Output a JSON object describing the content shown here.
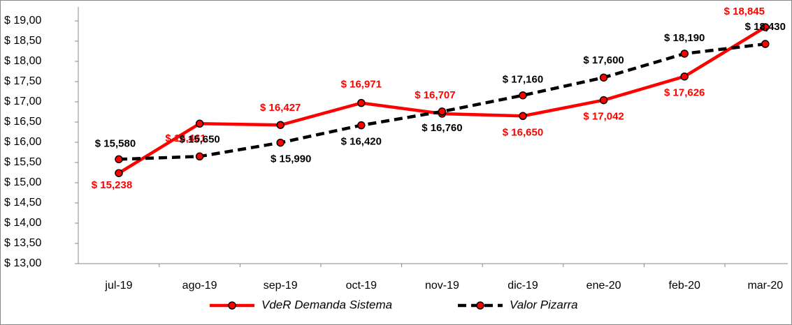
{
  "chart_data": {
    "type": "line",
    "categories": [
      "jul-19",
      "ago-19",
      "sep-19",
      "oct-19",
      "nov-19",
      "dic-19",
      "ene-20",
      "feb-20",
      "mar-20"
    ],
    "series": [
      {
        "name": "VdeR Demanda Sistema",
        "color": "#ff0000",
        "values": [
          15.238,
          16.461,
          16.427,
          16.971,
          16.707,
          16.65,
          17.042,
          17.626,
          18.845
        ],
        "value_labels": [
          "$ 15,238",
          "$ 16,461",
          "$ 16,427",
          "$ 16,971",
          "$ 16,707",
          "$ 16,650",
          "$ 17,042",
          "$ 17,626",
          "$ 18,845"
        ]
      },
      {
        "name": "Valor Pizarra",
        "color": "#000000",
        "values": [
          15.58,
          15.65,
          15.99,
          16.42,
          16.76,
          17.16,
          17.6,
          18.19,
          18.43
        ],
        "value_labels": [
          "$ 15,580",
          "$ 15,650",
          "$ 15,990",
          "$ 16,420",
          "$ 16,760",
          "$ 17,160",
          "$ 17,600",
          "$ 18,190",
          "$ 18,430"
        ]
      }
    ],
    "ylim": [
      13,
      19
    ],
    "yticks": [
      {
        "value": 13,
        "label": "$ 13,00"
      },
      {
        "value": 13.5,
        "label": "$ 13,50"
      },
      {
        "value": 14,
        "label": "$ 14,00"
      },
      {
        "value": 14.5,
        "label": "$ 14,50"
      },
      {
        "value": 15,
        "label": "$ 15,00"
      },
      {
        "value": 15.5,
        "label": "$ 15,50"
      },
      {
        "value": 16,
        "label": "$ 16,00"
      },
      {
        "value": 16.5,
        "label": "$ 16,50"
      },
      {
        "value": 17,
        "label": "$ 17,00"
      },
      {
        "value": 17.5,
        "label": "$ 17,50"
      },
      {
        "value": 18,
        "label": "$ 18,00"
      },
      {
        "value": 18.5,
        "label": "$ 18,50"
      },
      {
        "value": 19,
        "label": "$ 19,00"
      }
    ],
    "grid": false,
    "legend": "bottom"
  }
}
